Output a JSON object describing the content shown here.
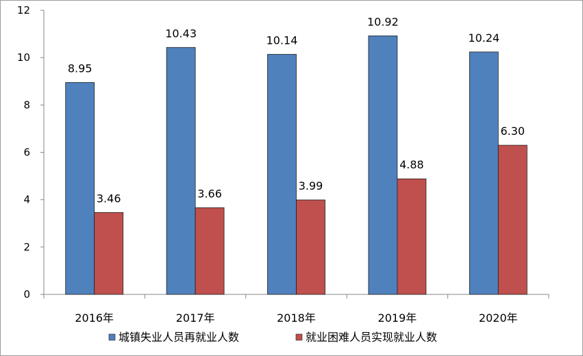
{
  "chart_data": {
    "type": "bar",
    "categories": [
      "2016年",
      "2017年",
      "2018年",
      "2019年",
      "2020年"
    ],
    "series": [
      {
        "name": "城镇失业人员再就业人数",
        "values": [
          8.95,
          10.43,
          10.14,
          10.92,
          10.24
        ],
        "labels": [
          "8.95",
          "10.43",
          "10.14",
          "10.92",
          "10.24"
        ],
        "color": "#4f81bd"
      },
      {
        "name": "就业困难人员实现就业人数",
        "values": [
          3.46,
          3.66,
          3.99,
          4.88,
          6.3
        ],
        "labels": [
          "3.46",
          "3.66",
          "3.99",
          "4.88",
          "6.30"
        ],
        "color": "#c0504d"
      }
    ],
    "ylim": [
      0,
      12
    ],
    "yticks": [
      0,
      2,
      4,
      6,
      8,
      10,
      12
    ],
    "grid": false,
    "legend_position": "bottom"
  }
}
